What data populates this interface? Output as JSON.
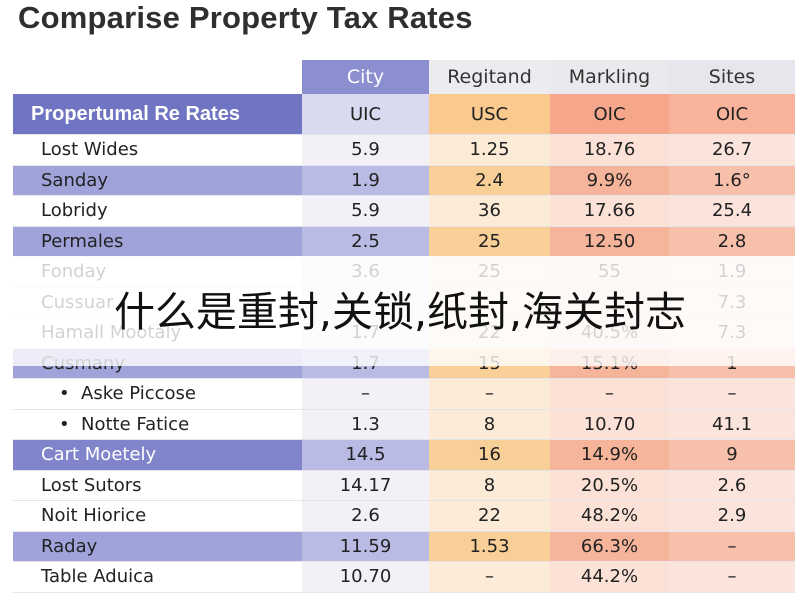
{
  "title": "Comparise Property Tax Rates",
  "overlay_text": "什么是重封,关锁,纸封,海关封志",
  "chart_data": {
    "type": "table",
    "columns": [
      "City",
      "Regitand",
      "Markling",
      "Sites"
    ],
    "sub_header": {
      "label": "Propertumal Re Rates",
      "values": [
        "UIC",
        "USC",
        "OIC",
        "OIC"
      ]
    },
    "rows": [
      {
        "label": "Lost Wides",
        "values": [
          "5.9",
          "1.25",
          "18.76",
          "26.7"
        ]
      },
      {
        "label": "Sanday",
        "values": [
          "1.9",
          "2.4",
          "9.9%",
          "1.6°"
        ]
      },
      {
        "label": "Lobridy",
        "values": [
          "5.9",
          "36",
          "17.66",
          "25.4"
        ]
      },
      {
        "label": "Permales",
        "values": [
          "2.5",
          "25",
          "12.50",
          "2.8"
        ]
      },
      {
        "label": "Fonday",
        "values": [
          "3.6",
          "25",
          "55",
          "1.9"
        ]
      },
      {
        "label": "Cussuar",
        "values": [
          "",
          "",
          "",
          "7.3"
        ]
      },
      {
        "label": "Hamall Mootaly",
        "values": [
          "1.7",
          "22",
          "40.5%",
          "7.3"
        ]
      },
      {
        "label": "Cusmany",
        "values": [
          "1.7",
          "15",
          "15.1%",
          "1"
        ]
      },
      {
        "label": "Aske Piccose",
        "values": [
          "–",
          "–",
          "–",
          "–"
        ]
      },
      {
        "label": "Notte Fatice",
        "values": [
          "1.3",
          "8",
          "10.70",
          "41.1"
        ]
      },
      {
        "label": "Cart Moetely",
        "values": [
          "14.5",
          "16",
          "14.9%",
          "9"
        ]
      },
      {
        "label": "Lost Sutors",
        "values": [
          "14.17",
          "8",
          "20.5%",
          "2.6"
        ]
      },
      {
        "label": "Noit Hiorice",
        "values": [
          "2.6",
          "22",
          "48.2%",
          "2.9"
        ]
      },
      {
        "label": "Raday",
        "values": [
          "11.59",
          "1.53",
          "66.3%",
          "–"
        ]
      },
      {
        "label": "Table Aduica",
        "values": [
          "10.70",
          "–",
          "44.2%",
          "–"
        ]
      }
    ],
    "bullet": "•",
    "colors": {
      "header_purple": "#6f74c3",
      "highlight_purple": "#9fa3da",
      "orange": "#f9c98e",
      "salmon": "#f6a78b"
    }
  }
}
